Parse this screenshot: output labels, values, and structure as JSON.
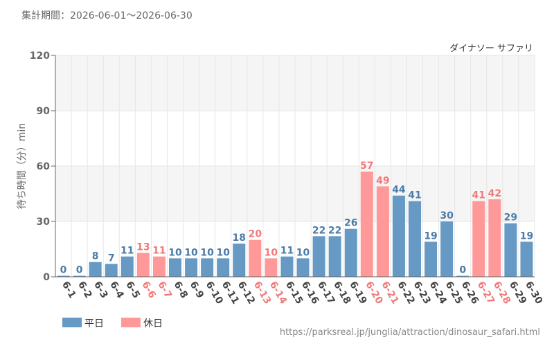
{
  "header": {
    "period_label": "集計期間：2026-06-01〜2026-06-30"
  },
  "footer": {
    "url": "https://parksreal.jp/junglia/attraction/dinosaur_safari.html"
  },
  "colors": {
    "weekday": "#6699c3",
    "holiday": "#ff9999",
    "weekday_label": "#4c7ba8",
    "holiday_label": "#f07a7a",
    "axis_text": "#666666",
    "grid": "#e6e6e6",
    "band": "#f5f5f5"
  },
  "chart_data": {
    "type": "bar",
    "title": "ダイナソー サファリ",
    "ylabel": "待ち時間（分）min",
    "xlabel": "",
    "ylim": [
      0,
      120
    ],
    "yticks": [
      0,
      30,
      60,
      90,
      120
    ],
    "grid": true,
    "legend": {
      "position": "bottom-left",
      "entries": [
        {
          "key": "weekday",
          "label": "平日"
        },
        {
          "key": "holiday",
          "label": "休日"
        }
      ]
    },
    "categories": [
      "6-1",
      "6-2",
      "6-3",
      "6-4",
      "6-5",
      "6-6",
      "6-7",
      "6-8",
      "6-9",
      "6-10",
      "6-11",
      "6-12",
      "6-13",
      "6-14",
      "6-15",
      "6-16",
      "6-17",
      "6-18",
      "6-19",
      "6-20",
      "6-21",
      "6-22",
      "6-23",
      "6-24",
      "6-25",
      "6-26",
      "6-27",
      "6-28",
      "6-29",
      "6-30"
    ],
    "values": [
      0,
      0,
      8,
      7,
      11,
      13,
      11,
      10,
      10,
      10,
      10,
      18,
      20,
      10,
      11,
      10,
      22,
      22,
      26,
      57,
      49,
      44,
      41,
      19,
      30,
      0,
      41,
      42,
      29,
      19
    ],
    "day_type": [
      "weekday",
      "weekday",
      "weekday",
      "weekday",
      "weekday",
      "holiday",
      "holiday",
      "weekday",
      "weekday",
      "weekday",
      "weekday",
      "weekday",
      "holiday",
      "holiday",
      "weekday",
      "weekday",
      "weekday",
      "weekday",
      "weekday",
      "holiday",
      "holiday",
      "weekday",
      "weekday",
      "weekday",
      "weekday",
      "weekday",
      "holiday",
      "holiday",
      "weekday",
      "weekday"
    ]
  }
}
